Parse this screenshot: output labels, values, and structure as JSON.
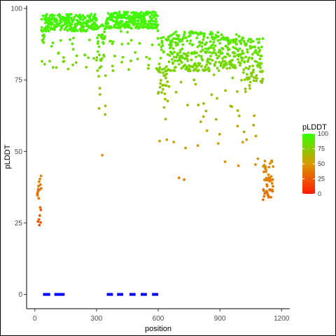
{
  "chart_data": {
    "type": "scatter",
    "xlabel": "position",
    "ylabel": "pLDDT",
    "xlim": [
      -40,
      1240
    ],
    "ylim": [
      -5,
      101
    ],
    "xticks": [
      0,
      300,
      600,
      900,
      1200
    ],
    "yticks": [
      0,
      25,
      50,
      75,
      100
    ],
    "xtick_labels": [
      "0",
      "300",
      "600",
      "900",
      "1200"
    ],
    "ytick_labels": [
      "0",
      "25",
      "50",
      "75",
      "100"
    ],
    "grid": false,
    "color_scale": {
      "title": "pLDDT",
      "range": [
        0,
        100
      ],
      "low_color": "#ff1a00",
      "high_color": "#33ff00",
      "ticks": [
        0,
        25,
        50,
        75,
        100
      ],
      "tick_labels": [
        "0",
        "25",
        "50",
        "75",
        "100"
      ],
      "legend_position": "right"
    },
    "segments": {
      "color": "#0000ff",
      "y": 0,
      "ranges": [
        [
          40,
          75
        ],
        [
          95,
          145
        ],
        [
          350,
          380
        ],
        [
          400,
          430
        ],
        [
          460,
          490
        ],
        [
          515,
          545
        ],
        [
          570,
          600
        ]
      ]
    },
    "regions": [
      {
        "x_from": 12,
        "x_to": 32,
        "median": 32,
        "spread": 10,
        "floor": 24
      },
      {
        "x_from": 32,
        "x_to": 50,
        "median": 93,
        "spread": 5,
        "floor": 65
      },
      {
        "x_from": 50,
        "x_to": 300,
        "median": 95,
        "spread": 3,
        "floor": 77
      },
      {
        "x_from": 300,
        "x_to": 345,
        "median": 85,
        "spread": 10,
        "floor": 43
      },
      {
        "x_from": 345,
        "x_to": 600,
        "median": 96,
        "spread": 3,
        "floor": 78
      },
      {
        "x_from": 600,
        "x_to": 650,
        "median": 80,
        "spread": 10,
        "floor": 48
      },
      {
        "x_from": 650,
        "x_to": 750,
        "median": 85,
        "spread": 7,
        "floor": 40
      },
      {
        "x_from": 750,
        "x_to": 900,
        "median": 85,
        "spread": 7,
        "floor": 52
      },
      {
        "x_from": 900,
        "x_to": 1005,
        "median": 85,
        "spread": 6,
        "floor": 43
      },
      {
        "x_from": 1005,
        "x_to": 1110,
        "median": 82,
        "spread": 8,
        "floor": 45
      },
      {
        "x_from": 1110,
        "x_to": 1160,
        "median": 40,
        "spread": 7,
        "floor": 30
      }
    ]
  }
}
